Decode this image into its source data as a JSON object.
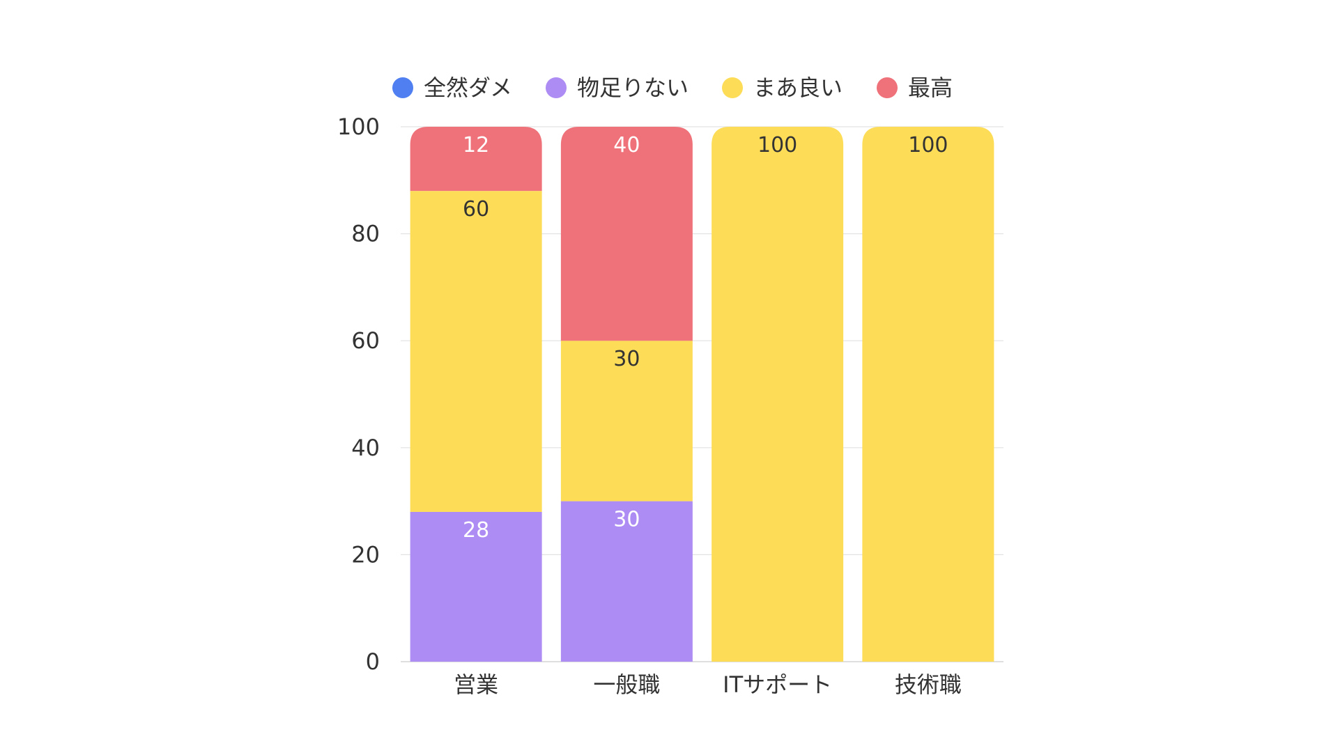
{
  "chart_data": {
    "type": "bar",
    "stacked": true,
    "categories": [
      "営業",
      "一般職",
      "ITサポート",
      "技術職"
    ],
    "series": [
      {
        "name": "全然ダメ",
        "color": "#4f7ff0",
        "values": [
          0,
          0,
          0,
          0
        ]
      },
      {
        "name": "物足りない",
        "color": "#ad8cf3",
        "values": [
          28,
          30,
          0,
          0
        ]
      },
      {
        "name": "まあ良い",
        "color": "#fddd57",
        "values": [
          60,
          30,
          100,
          100
        ]
      },
      {
        "name": "最高",
        "color": "#ef727a",
        "values": [
          12,
          40,
          0,
          0
        ]
      }
    ],
    "data_labels": [
      {
        "series": "物足りない",
        "category": "営業",
        "text": "28",
        "color": "#ffffff"
      },
      {
        "series": "まあ良い",
        "category": "営業",
        "text": "60",
        "color": "#333333"
      },
      {
        "series": "最高",
        "category": "営業",
        "text": "12",
        "color": "#ffffff"
      },
      {
        "series": "物足りない",
        "category": "一般職",
        "text": "30",
        "color": "#ffffff"
      },
      {
        "series": "まあ良い",
        "category": "一般職",
        "text": "30",
        "color": "#333333"
      },
      {
        "series": "最高",
        "category": "一般職",
        "text": "40",
        "color": "#ffffff"
      },
      {
        "series": "まあ良い",
        "category": "ITサポート",
        "text": "100",
        "color": "#333333"
      },
      {
        "series": "まあ良い",
        "category": "技術職",
        "text": "100",
        "color": "#333333"
      }
    ],
    "y_ticks": [
      "0",
      "20",
      "40",
      "60",
      "80",
      "100"
    ],
    "ylim": [
      0,
      100
    ],
    "grid": true,
    "legend_position": "top",
    "title": "",
    "xlabel": "",
    "ylabel": ""
  }
}
